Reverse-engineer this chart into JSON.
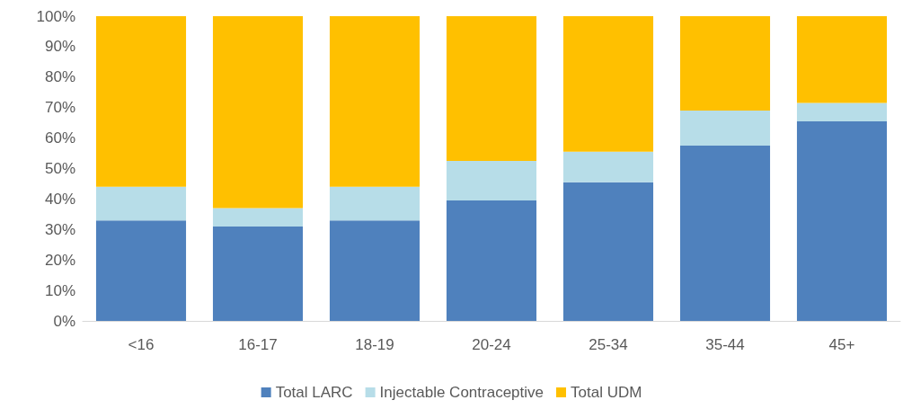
{
  "chart_data": {
    "type": "bar",
    "stacked": true,
    "categories": [
      "<16",
      "16-17",
      "18-19",
      "20-24",
      "25-34",
      "35-44",
      "45+"
    ],
    "series": [
      {
        "name": "Total LARC",
        "color": "#4f81bd",
        "values": [
          33,
          31,
          33,
          39.5,
          45.5,
          57.5,
          65.5
        ]
      },
      {
        "name": "Injectable Contraceptive",
        "color": "#b7dde8",
        "values": [
          11,
          6,
          11,
          13,
          10,
          11.5,
          6
        ]
      },
      {
        "name": "Total UDM",
        "color": "#ffc000",
        "values": [
          56,
          63,
          56,
          47.5,
          44.5,
          31,
          28.5
        ]
      }
    ],
    "ylim": [
      0,
      100
    ],
    "yticks": [
      {
        "value": 0,
        "label": "0%"
      },
      {
        "value": 10,
        "label": "10%"
      },
      {
        "value": 20,
        "label": "20%"
      },
      {
        "value": 30,
        "label": "30%"
      },
      {
        "value": 40,
        "label": "40%"
      },
      {
        "value": 50,
        "label": "50%"
      },
      {
        "value": 60,
        "label": "60%"
      },
      {
        "value": 70,
        "label": "70%"
      },
      {
        "value": 80,
        "label": "80%"
      },
      {
        "value": 90,
        "label": "90%"
      },
      {
        "value": 100,
        "label": "100%"
      }
    ],
    "grid": false,
    "legend": "bottom"
  }
}
